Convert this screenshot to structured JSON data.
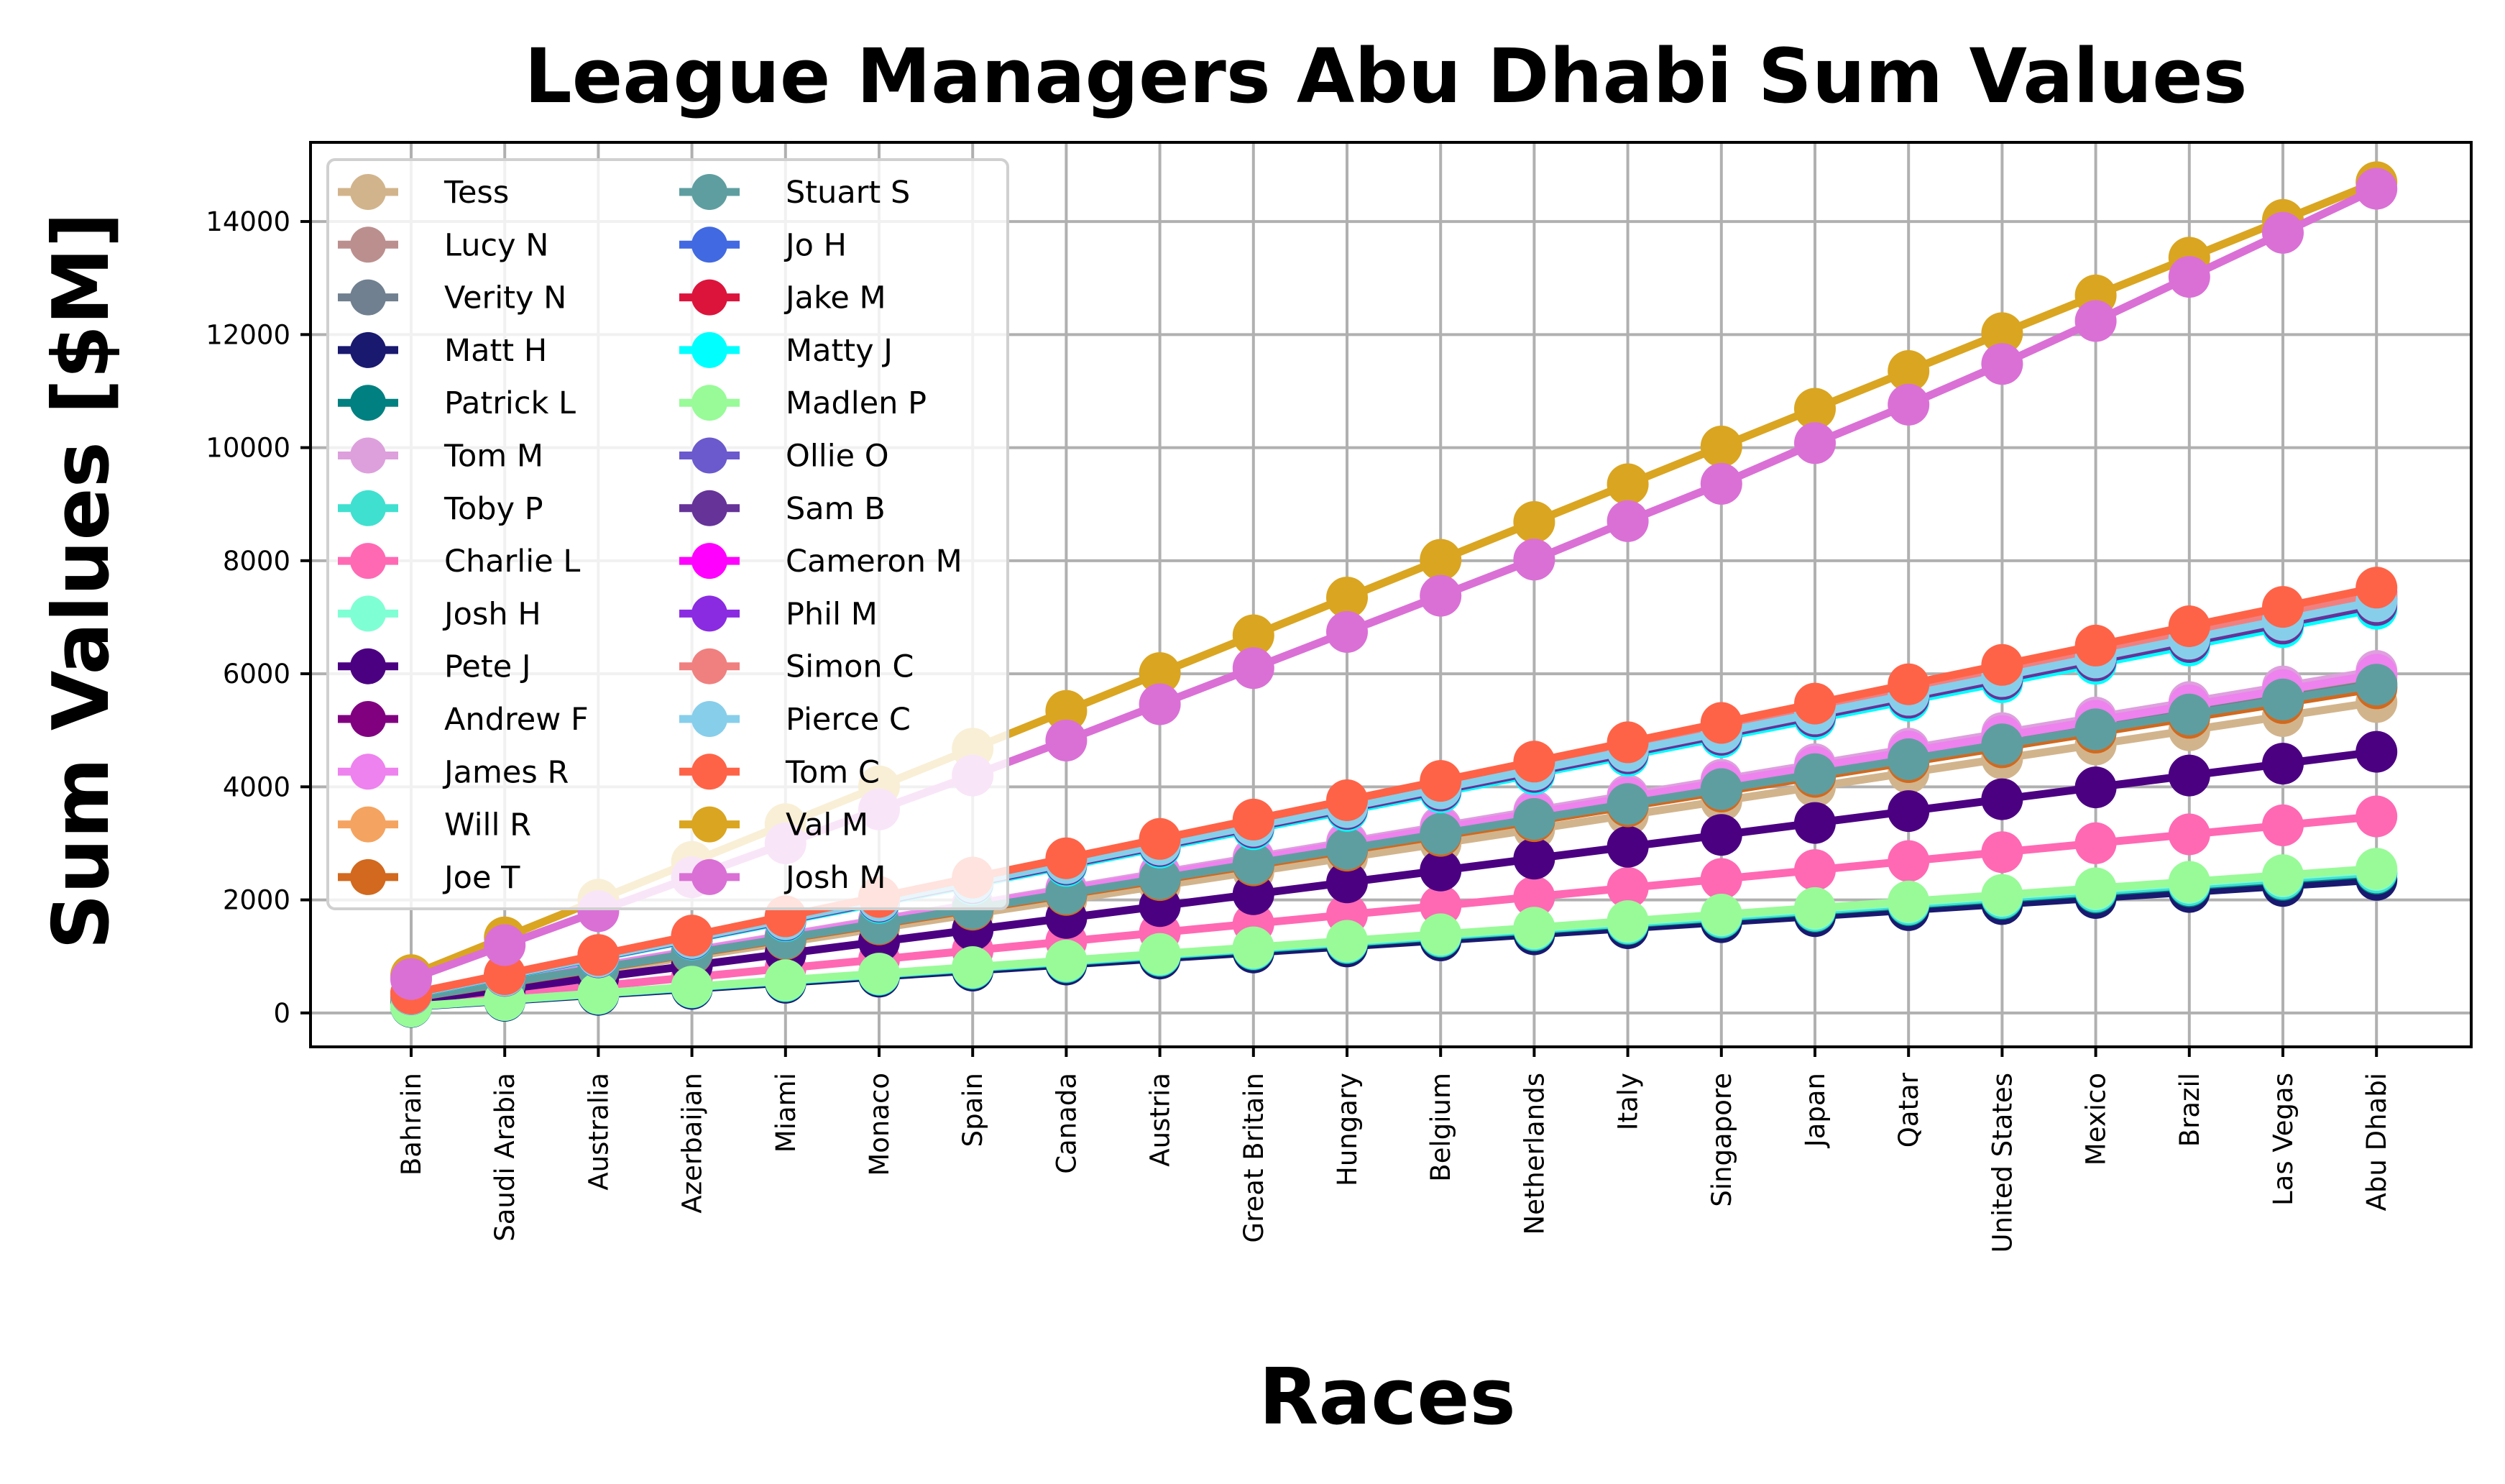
{
  "chart_data": {
    "type": "line",
    "title": "League Managers Abu Dhabi Sum Values",
    "xlabel": "Races",
    "ylabel": "Sum Values [$M]",
    "categories": [
      "Bahrain",
      "Saudi Arabia",
      "Australia",
      "Azerbaijan",
      "Miami",
      "Monaco",
      "Spain",
      "Canada",
      "Austria",
      "Great Britain",
      "Hungary",
      "Belgium",
      "Netherlands",
      "Italy",
      "Singapore",
      "Japan",
      "Qatar",
      "United States",
      "Mexico",
      "Brazil",
      "Las Vegas",
      "Abu Dhabi"
    ],
    "ylim": [
      -600,
      15400
    ],
    "yticks": [
      0,
      2000,
      4000,
      6000,
      8000,
      10000,
      12000,
      14000
    ],
    "grid": true,
    "legend_position": "upper-left",
    "series": [
      {
        "name": "Tess",
        "color": "#d2b48c",
        "values": [
          250,
          500,
          750,
          1000,
          1250,
          1500,
          1750,
          2000,
          2250,
          2500,
          2750,
          3000,
          3250,
          3500,
          3750,
          4000,
          4250,
          4500,
          4750,
          5000,
          5250,
          5500
        ]
      },
      {
        "name": "Lucy N",
        "color": "#bc8f8f",
        "values": [
          270,
          540,
          810,
          1080,
          1350,
          1620,
          1890,
          2160,
          2430,
          2700,
          2970,
          3240,
          3510,
          3780,
          4050,
          4320,
          4590,
          4860,
          5130,
          5400,
          5670,
          5940
        ]
      },
      {
        "name": "Verity N",
        "color": "#708090",
        "values": [
          265,
          530,
          795,
          1060,
          1325,
          1590,
          1855,
          2120,
          2385,
          2650,
          2915,
          3180,
          3445,
          3710,
          3975,
          4240,
          4505,
          4770,
          5035,
          5300,
          5565,
          5830
        ]
      },
      {
        "name": "Matt H",
        "color": "#191970",
        "values": [
          107,
          214,
          321,
          428,
          535,
          642,
          749,
          856,
          963,
          1070,
          1177,
          1284,
          1391,
          1498,
          1605,
          1712,
          1819,
          1926,
          2033,
          2140,
          2247,
          2354
        ]
      },
      {
        "name": "Patrick L",
        "color": "#008080",
        "values": [
          112,
          224,
          336,
          448,
          560,
          672,
          784,
          896,
          1008,
          1120,
          1232,
          1344,
          1456,
          1568,
          1680,
          1792,
          1904,
          2016,
          2128,
          2240,
          2352,
          2464
        ]
      },
      {
        "name": "Tom M",
        "color": "#dda0dd",
        "values": [
          275,
          550,
          825,
          1100,
          1375,
          1650,
          1925,
          2200,
          2475,
          2750,
          3025,
          3300,
          3575,
          3850,
          4125,
          4400,
          4675,
          4950,
          5225,
          5500,
          5775,
          6050
        ]
      },
      {
        "name": "Toby P",
        "color": "#40e0d0",
        "values": [
          113,
          226,
          339,
          452,
          565,
          678,
          791,
          904,
          1017,
          1130,
          1243,
          1356,
          1469,
          1582,
          1695,
          1808,
          1921,
          2034,
          2147,
          2260,
          2373,
          2486
        ]
      },
      {
        "name": "Charlie L",
        "color": "#ff69b4",
        "values": [
          158,
          316,
          474,
          632,
          790,
          948,
          1106,
          1264,
          1422,
          1580,
          1738,
          1896,
          2054,
          2212,
          2370,
          2528,
          2686,
          2844,
          3002,
          3160,
          3318,
          3476
        ]
      },
      {
        "name": "Josh H",
        "color": "#7fffd4",
        "values": [
          115,
          230,
          345,
          460,
          575,
          690,
          805,
          920,
          1035,
          1150,
          1265,
          1380,
          1495,
          1610,
          1725,
          1840,
          1955,
          2070,
          2185,
          2300,
          2415,
          2530
        ]
      },
      {
        "name": "Pete J",
        "color": "#4b0082",
        "values": [
          210,
          420,
          630,
          840,
          1050,
          1260,
          1470,
          1680,
          1890,
          2100,
          2310,
          2520,
          2730,
          2940,
          3150,
          3360,
          3570,
          3780,
          3990,
          4200,
          4410,
          4620
        ]
      },
      {
        "name": "Andrew F",
        "color": "#800080",
        "values": [
          262,
          524,
          786,
          1048,
          1310,
          1572,
          1834,
          2096,
          2358,
          2620,
          2882,
          3144,
          3406,
          3668,
          3930,
          4192,
          4454,
          4716,
          4978,
          5240,
          5502,
          5764
        ]
      },
      {
        "name": "James R",
        "color": "#ee82ee",
        "values": [
          272,
          544,
          816,
          1088,
          1360,
          1632,
          1904,
          2176,
          2448,
          2720,
          2992,
          3264,
          3536,
          3808,
          4080,
          4352,
          4624,
          4896,
          5168,
          5440,
          5712,
          5984
        ]
      },
      {
        "name": "Will R",
        "color": "#f4a460",
        "values": [
          263,
          526,
          789,
          1052,
          1315,
          1578,
          1841,
          2104,
          2367,
          2630,
          2893,
          3156,
          3419,
          3682,
          3945,
          4208,
          4471,
          4734,
          4997,
          5260,
          5523,
          5786
        ]
      },
      {
        "name": "Joe T",
        "color": "#d2691e",
        "values": [
          261,
          522,
          783,
          1044,
          1305,
          1566,
          1827,
          2088,
          2349,
          2610,
          2871,
          3132,
          3393,
          3654,
          3915,
          4176,
          4437,
          4698,
          4959,
          5220,
          5481,
          5742
        ]
      },
      {
        "name": "Stuart S",
        "color": "#5f9ea0",
        "values": [
          264,
          528,
          792,
          1056,
          1320,
          1584,
          1848,
          2112,
          2376,
          2640,
          2904,
          3168,
          3432,
          3696,
          3960,
          4224,
          4488,
          4752,
          5016,
          5280,
          5544,
          5808
        ]
      },
      {
        "name": "Jo H",
        "color": "#4169e1",
        "values": [
          330,
          660,
          990,
          1320,
          1650,
          1980,
          2310,
          2640,
          2970,
          3300,
          3630,
          3960,
          4290,
          4620,
          4950,
          5280,
          5610,
          5940,
          6270,
          6600,
          6930,
          7260
        ]
      },
      {
        "name": "Jake M",
        "color": "#dc143c",
        "values": [
          335,
          670,
          1005,
          1340,
          1675,
          2010,
          2345,
          2680,
          3015,
          3350,
          3685,
          4020,
          4355,
          4690,
          5025,
          5360,
          5695,
          6030,
          6365,
          6700,
          7035,
          7370
        ]
      },
      {
        "name": "Matty J",
        "color": "#00ffff",
        "values": [
          325,
          650,
          975,
          1300,
          1625,
          1950,
          2275,
          2600,
          2925,
          3250,
          3575,
          3900,
          4225,
          4550,
          4875,
          5200,
          5525,
          5850,
          6175,
          6500,
          6825,
          7150
        ]
      },
      {
        "name": "Madlen P",
        "color": "#98fb98",
        "values": [
          116,
          232,
          348,
          464,
          580,
          696,
          812,
          928,
          1044,
          1160,
          1276,
          1392,
          1508,
          1624,
          1740,
          1856,
          1972,
          2088,
          2204,
          2320,
          2436,
          2552
        ]
      },
      {
        "name": "Ollie O",
        "color": "#6a5acd",
        "values": [
          332,
          664,
          996,
          1328,
          1660,
          1992,
          2324,
          2656,
          2988,
          3320,
          3652,
          3984,
          4316,
          4648,
          4980,
          5312,
          5644,
          5976,
          6308,
          6640,
          6972,
          7304
        ]
      },
      {
        "name": "Sam B",
        "color": "#663399",
        "values": [
          328,
          656,
          984,
          1312,
          1640,
          1968,
          2296,
          2624,
          2952,
          3280,
          3608,
          3936,
          4264,
          4592,
          4920,
          5248,
          5576,
          5904,
          6232,
          6560,
          6888,
          7216
        ]
      },
      {
        "name": "Cameron M",
        "color": "#ff00ff",
        "values": [
          338,
          676,
          1014,
          1352,
          1690,
          2028,
          2366,
          2704,
          3042,
          3380,
          3718,
          4056,
          4394,
          4732,
          5070,
          5408,
          5746,
          6084,
          6422,
          6760,
          7098,
          7436
        ]
      },
      {
        "name": "Phil M",
        "color": "#8a2be2",
        "values": [
          333,
          666,
          999,
          1332,
          1665,
          1998,
          2331,
          2664,
          2997,
          3330,
          3663,
          3996,
          4329,
          4662,
          4995,
          5328,
          5661,
          5994,
          6327,
          6660,
          6993,
          7326
        ]
      },
      {
        "name": "Simon C",
        "color": "#f08080",
        "values": [
          336,
          672,
          1008,
          1344,
          1680,
          2016,
          2352,
          2688,
          3024,
          3360,
          3696,
          4032,
          4368,
          4704,
          5040,
          5376,
          5712,
          6048,
          6384,
          6720,
          7056,
          7392
        ]
      },
      {
        "name": "Pierce C",
        "color": "#87ceeb",
        "values": [
          331,
          662,
          993,
          1324,
          1655,
          1986,
          2317,
          2648,
          2979,
          3310,
          3641,
          3972,
          4303,
          4634,
          4965,
          5296,
          5627,
          5958,
          6289,
          6620,
          6951,
          7282
        ]
      },
      {
        "name": "Tom C",
        "color": "#ff6347",
        "values": [
          342,
          684,
          1026,
          1368,
          1710,
          2052,
          2394,
          2736,
          3078,
          3420,
          3762,
          4104,
          4446,
          4788,
          5130,
          5472,
          5814,
          6156,
          6498,
          6840,
          7182,
          7524
        ]
      },
      {
        "name": "Val M",
        "color": "#daa520",
        "values": [
          668,
          1336,
          2004,
          2672,
          3340,
          4008,
          4676,
          5344,
          6012,
          6680,
          7348,
          8016,
          8684,
          9352,
          10020,
          10688,
          11356,
          12024,
          12692,
          13360,
          14028,
          14696
        ]
      },
      {
        "name": "Josh M",
        "color": "#da70d6",
        "values": [
          600,
          1200,
          1800,
          2400,
          3000,
          3600,
          4200,
          4820,
          5460,
          6100,
          6740,
          7380,
          8020,
          8700,
          9360,
          10080,
          10760,
          11480,
          12240,
          13020,
          13800,
          14580
        ]
      }
    ]
  }
}
